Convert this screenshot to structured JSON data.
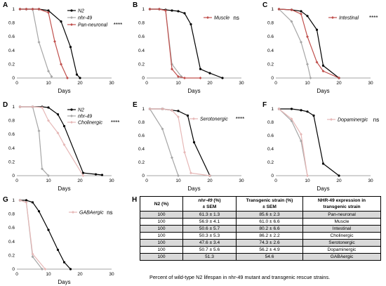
{
  "colors": {
    "N2": "#000000",
    "nhr-49": "#a6a6a6",
    "transgenic": "#c0504d",
    "transgenic_light": "#e6b8b7",
    "fill_highlight": "#ff99cc"
  },
  "chart_data": [
    {
      "id": "A",
      "letter": "A",
      "type": "line",
      "xlabel": "Days",
      "xticks": [
        0,
        10,
        20,
        30
      ],
      "yticks": [
        0,
        0.2,
        0.4,
        0.6,
        0.8,
        1
      ],
      "xlim": [
        0,
        30
      ],
      "ylim": [
        0,
        1
      ],
      "legend": {
        "placement": "top-right",
        "entries": [
          "N2",
          "nhr-49",
          "Pan-neuronal"
        ]
      },
      "significance": "****",
      "series": [
        {
          "name": "N2",
          "color": "#000000",
          "x": [
            1,
            3,
            5,
            7,
            10,
            14,
            17,
            19,
            20
          ],
          "y": [
            1,
            1,
            1,
            1,
            0.98,
            0.82,
            0.45,
            0.05,
            0
          ]
        },
        {
          "name": "nhr-49",
          "color": "#a6a6a6",
          "x": [
            1,
            3,
            5,
            7,
            10,
            11
          ],
          "y": [
            1,
            1,
            1,
            0.52,
            0.1,
            0.02
          ]
        },
        {
          "name": "Pan-neuronal",
          "color": "#c0504d",
          "x": [
            1,
            3,
            5,
            7,
            10,
            12,
            14,
            16
          ],
          "y": [
            1,
            1,
            1,
            1,
            0.95,
            0.53,
            0.2,
            0
          ]
        }
      ]
    },
    {
      "id": "B",
      "letter": "B",
      "type": "line",
      "xlabel": "Days",
      "xticks": [
        0,
        10,
        20,
        30
      ],
      "yticks": [
        0,
        0.2,
        0.4,
        0.6,
        0.8,
        1
      ],
      "xlim": [
        0,
        30
      ],
      "ylim": [
        0,
        1
      ],
      "legend": {
        "placement": "top-right",
        "entries": [
          "Muscle"
        ]
      },
      "significance": "ns",
      "series": [
        {
          "name": "N2",
          "color": "#000000",
          "x": [
            1,
            4,
            6,
            8,
            10,
            12,
            14,
            17,
            20,
            24
          ],
          "y": [
            1,
            1,
            0.99,
            0.98,
            0.97,
            0.94,
            0.78,
            0.13,
            0.07,
            0
          ]
        },
        {
          "name": "nhr-49",
          "color": "#a6a6a6",
          "x": [
            1,
            4,
            6,
            8,
            11
          ],
          "y": [
            1,
            1,
            0.98,
            0.2,
            0.02
          ]
        },
        {
          "name": "Muscle",
          "color": "#c0504d",
          "x": [
            1,
            4,
            6,
            8,
            10,
            12,
            17
          ],
          "y": [
            1,
            1,
            0.98,
            0.13,
            0.02,
            0,
            0
          ]
        }
      ]
    },
    {
      "id": "C",
      "letter": "C",
      "type": "line",
      "xlabel": "Days",
      "xticks": [
        0,
        10,
        20,
        30
      ],
      "yticks": [
        0,
        0.2,
        0.4,
        0.6,
        0.8,
        1
      ],
      "xlim": [
        0,
        30
      ],
      "ylim": [
        0,
        1
      ],
      "legend": {
        "placement": "top-right",
        "entries": [
          "Intestinal"
        ]
      },
      "significance": "****",
      "series": [
        {
          "name": "N2",
          "color": "#000000",
          "x": [
            1,
            5,
            8,
            10,
            13,
            15,
            20
          ],
          "y": [
            1,
            0.99,
            0.97,
            0.9,
            0.7,
            0.18,
            0
          ]
        },
        {
          "name": "nhr-49",
          "color": "#a6a6a6",
          "x": [
            1,
            5,
            8,
            10,
            11
          ],
          "y": [
            1,
            0.82,
            0.52,
            0.2,
            0
          ]
        },
        {
          "name": "Intestinal",
          "color": "#c0504d",
          "x": [
            1,
            5,
            8,
            10,
            13,
            15,
            20
          ],
          "y": [
            1,
            0.99,
            0.93,
            0.6,
            0.23,
            0.1,
            0
          ]
        }
      ]
    },
    {
      "id": "D",
      "letter": "D",
      "type": "line",
      "xlabel": "Days",
      "xticks": [
        0,
        10,
        20,
        30
      ],
      "yticks": [
        0,
        0.2,
        0.4,
        0.6,
        0.8,
        1
      ],
      "xlim": [
        0,
        30
      ],
      "ylim": [
        0,
        1
      ],
      "legend": {
        "placement": "top-right",
        "entries": [
          "N2",
          "nhr-49",
          "Cholinergic"
        ]
      },
      "significance": "****",
      "series": [
        {
          "name": "N2",
          "color": "#000000",
          "x": [
            1,
            5,
            8,
            10,
            13,
            15,
            21,
            25,
            27
          ],
          "y": [
            1,
            1,
            1,
            0.99,
            0.89,
            0.72,
            0.04,
            0.02,
            0.01
          ]
        },
        {
          "name": "nhr-49",
          "color": "#a6a6a6",
          "x": [
            1,
            5,
            7,
            8,
            10
          ],
          "y": [
            1,
            1,
            0.65,
            0.1,
            0
          ]
        },
        {
          "name": "Cholinergic",
          "color": "#e6b8b7",
          "x": [
            1,
            5,
            8,
            10,
            13,
            15,
            21
          ],
          "y": [
            1,
            1,
            0.99,
            0.8,
            0.62,
            0.45,
            0
          ]
        }
      ]
    },
    {
      "id": "E",
      "letter": "E",
      "type": "line",
      "xlabel": "Days",
      "xticks": [
        0,
        10,
        20,
        30
      ],
      "yticks": [
        0,
        0.2,
        0.4,
        0.6,
        0.8,
        1
      ],
      "xlim": [
        0,
        30
      ],
      "ylim": [
        0,
        1
      ],
      "legend": {
        "placement": "top-right",
        "entries": [
          "Serotonergic"
        ]
      },
      "significance": "****",
      "series": [
        {
          "name": "N2",
          "color": "#000000",
          "x": [
            1,
            5,
            8,
            10,
            13,
            15,
            20
          ],
          "y": [
            1,
            1,
            0.98,
            0.97,
            0.9,
            0.5,
            0
          ]
        },
        {
          "name": "nhr-49",
          "color": "#a6a6a6",
          "x": [
            1,
            5,
            8,
            10
          ],
          "y": [
            1,
            0.7,
            0.27,
            0
          ]
        },
        {
          "name": "Serotonergic",
          "color": "#e6b8b7",
          "x": [
            1,
            5,
            8,
            10,
            12,
            14,
            20
          ],
          "y": [
            1,
            1,
            0.98,
            0.88,
            0.35,
            0.04,
            0
          ]
        }
      ]
    },
    {
      "id": "F",
      "letter": "F",
      "type": "line",
      "xlabel": "Days",
      "xticks": [
        0,
        10,
        20,
        30
      ],
      "yticks": [
        0,
        0.2,
        0.4,
        0.6,
        0.8,
        1
      ],
      "xlim": [
        0,
        30
      ],
      "ylim": [
        0,
        1
      ],
      "legend": {
        "placement": "top-right",
        "entries": [
          "Dopaminergic"
        ]
      },
      "significance": "ns",
      "series": [
        {
          "name": "N2",
          "color": "#000000",
          "x": [
            1,
            5,
            8,
            10,
            12,
            15,
            20
          ],
          "y": [
            1,
            1,
            0.98,
            0.96,
            0.9,
            0.18,
            0
          ]
        },
        {
          "name": "nhr-49",
          "color": "#a6a6a6",
          "x": [
            1,
            5,
            8,
            10
          ],
          "y": [
            1,
            0.82,
            0.52,
            0
          ]
        },
        {
          "name": "Dopaminergic",
          "color": "#e6b8b7",
          "x": [
            1,
            5,
            8,
            10
          ],
          "y": [
            1,
            0.85,
            0.62,
            0
          ]
        }
      ]
    },
    {
      "id": "G",
      "letter": "G",
      "type": "line",
      "xlabel": "Days",
      "xticks": [
        0,
        10,
        20,
        30
      ],
      "yticks": [
        0,
        0.2,
        0.4,
        0.6,
        0.8,
        1
      ],
      "xlim": [
        0,
        30
      ],
      "ylim": [
        0,
        1
      ],
      "legend": {
        "placement": "top-right",
        "entries": [
          "GABAergic"
        ]
      },
      "significance": "ns",
      "series": [
        {
          "name": "N2",
          "color": "#000000",
          "x": [
            1,
            3,
            5,
            7,
            10,
            13,
            15,
            17
          ],
          "y": [
            1,
            1,
            0.97,
            0.84,
            0.57,
            0.28,
            0.1,
            0
          ]
        },
        {
          "name": "nhr-49",
          "color": "#a6a6a6",
          "x": [
            1,
            3,
            5,
            8
          ],
          "y": [
            1,
            0.97,
            0.18,
            0
          ]
        },
        {
          "name": "GABAergic",
          "color": "#e6b8b7",
          "x": [
            1,
            3,
            5,
            9
          ],
          "y": [
            1,
            0.97,
            0.22,
            0
          ]
        }
      ]
    }
  ],
  "table": {
    "letter": "H",
    "headers": {
      "c1": "N2 (%)",
      "c2_italic": "nhr-49",
      "c2_rest": " (%)",
      "c2_line2": "± SEM",
      "c3_line1": "Transgenic strain (%)",
      "c3_line2": "± SEM",
      "c4_line1": "NHR-49 expression in",
      "c4_line2": "transgenic strain"
    },
    "rows": [
      [
        "100",
        "61.3 ± 1.3",
        "85.6 ± 2.3",
        "Pan-neuronal"
      ],
      [
        "100",
        "56.9 ± 4.1",
        "61.0 ± 6.6",
        "Muscle"
      ],
      [
        "100",
        "50.6 ± 5.7",
        "80.2 ± 6.6",
        "Intestinal"
      ],
      [
        "100",
        "50.3 ± 5.3",
        "86.2 ± 2.2",
        "Cholinergic"
      ],
      [
        "100",
        "47.6 ± 3.4",
        "74.3 ± 2.6",
        "Serotonergic"
      ],
      [
        "100",
        "50.7 ± 5.6",
        "56.2 ± 4.9",
        "Dopaminergic"
      ],
      [
        "100",
        "51.3",
        "54.6",
        "GABAergic"
      ]
    ],
    "caption": "Percent of wild-type N2 lifespan in nhr-49 mutant and transgenic rescue strains."
  }
}
